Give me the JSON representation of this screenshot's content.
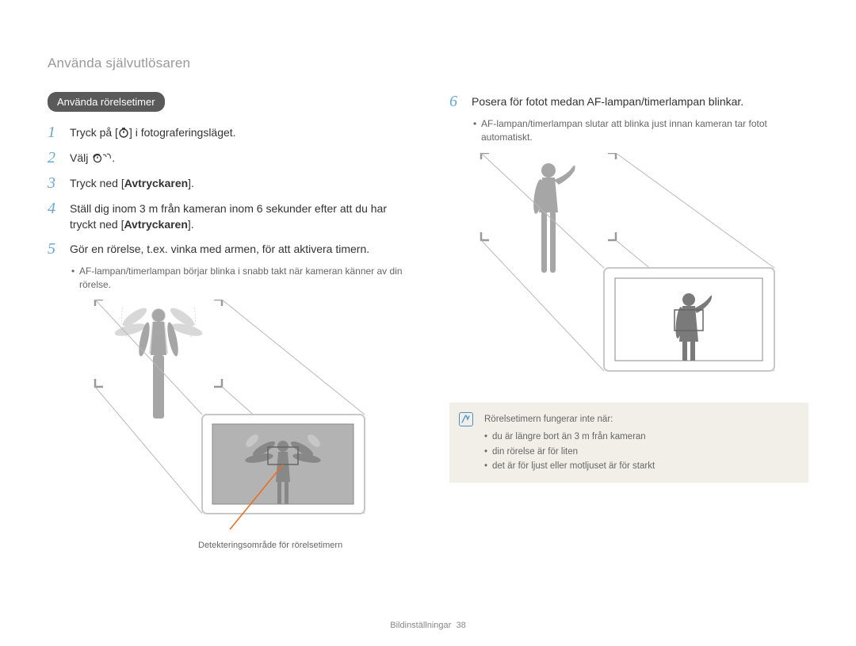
{
  "page_title": "Använda självutlösaren",
  "section_label": "Använda rörelsetimer",
  "steps_left": [
    {
      "num": "1",
      "html": "Tryck på [<svg class='timer-icon' width='14' height='14' viewBox='0 0 14 14'><circle cx='7' cy='8' r='5' fill='none' stroke='#333' stroke-width='1.4'/><line x1='7' y1='8' x2='7' y2='5' stroke='#333' stroke-width='1.4'/><line x1='5' y1='1.8' x2='9' y2='1.8' stroke='#333' stroke-width='1.4'/></svg>] i fotograferingsläget."
    },
    {
      "num": "2",
      "html": "Välj <svg class='timer-icon' width='26' height='14' viewBox='0 0 26 14'><path d='M3 7 C3 4 5 2.5 8 2.5 C10 2.5 11 4 11 4' fill='none' stroke='#333' stroke-width='1.3'/><circle cx='8' cy='8' r='4.5' fill='none' stroke='#333' stroke-width='1.3'/><line x1='8' y1='8' x2='8' y2='5.5' stroke='#333' stroke-width='1.3'/><path d='M15 3.5 C17 2 19 4 19 6' fill='none' stroke='#333' stroke-width='1'/><path d='M20 2.5 C23 1 25 5 24 8' fill='none' stroke='#333' stroke-width='1'/></svg>."
    },
    {
      "num": "3",
      "html": "Tryck ned [<span class='bold'>Avtryckaren</span>]."
    },
    {
      "num": "4",
      "html": "Ställ dig inom 3 m från kameran inom 6 sekunder efter att du har tryckt ned [<span class='bold'>Avtryckaren</span>]."
    },
    {
      "num": "5",
      "html": "Gör en rörelse, t.ex. vinka med armen, för att aktivera timern."
    }
  ],
  "sub_bullet_left": "AF-lampan/timerlampan börjar blinka i snabb takt när kameran känner av din rörelse.",
  "caption_left": "Detekteringsområde för rörelsetimern",
  "steps_right": [
    {
      "num": "6",
      "html": "Posera för fotot medan AF-lampan/timerlampan blinkar."
    }
  ],
  "sub_bullet_right": "AF-lampan/timerlampan slutar att blinka just innan kameran tar fotot automatiskt.",
  "note_title": "Rörelsetimern fungerar inte när:",
  "note_items": [
    "du är längre bort än 3 m från kameran",
    "din rörelse är för liten",
    "det är för ljust eller motljuset är för starkt"
  ],
  "footer_section": "Bildinställningar",
  "footer_page": "38",
  "illustration": {
    "person_fill": "#a6a6a6",
    "person_ghost": "#d8d8d8",
    "corner_stroke": "#9a9a9a",
    "screen_bg": "#b3b3b3",
    "screen_border": "#888888",
    "focus_box": "#666666",
    "guide_line": "#b8b8b8",
    "indicator_line": "#ec6b1f"
  }
}
